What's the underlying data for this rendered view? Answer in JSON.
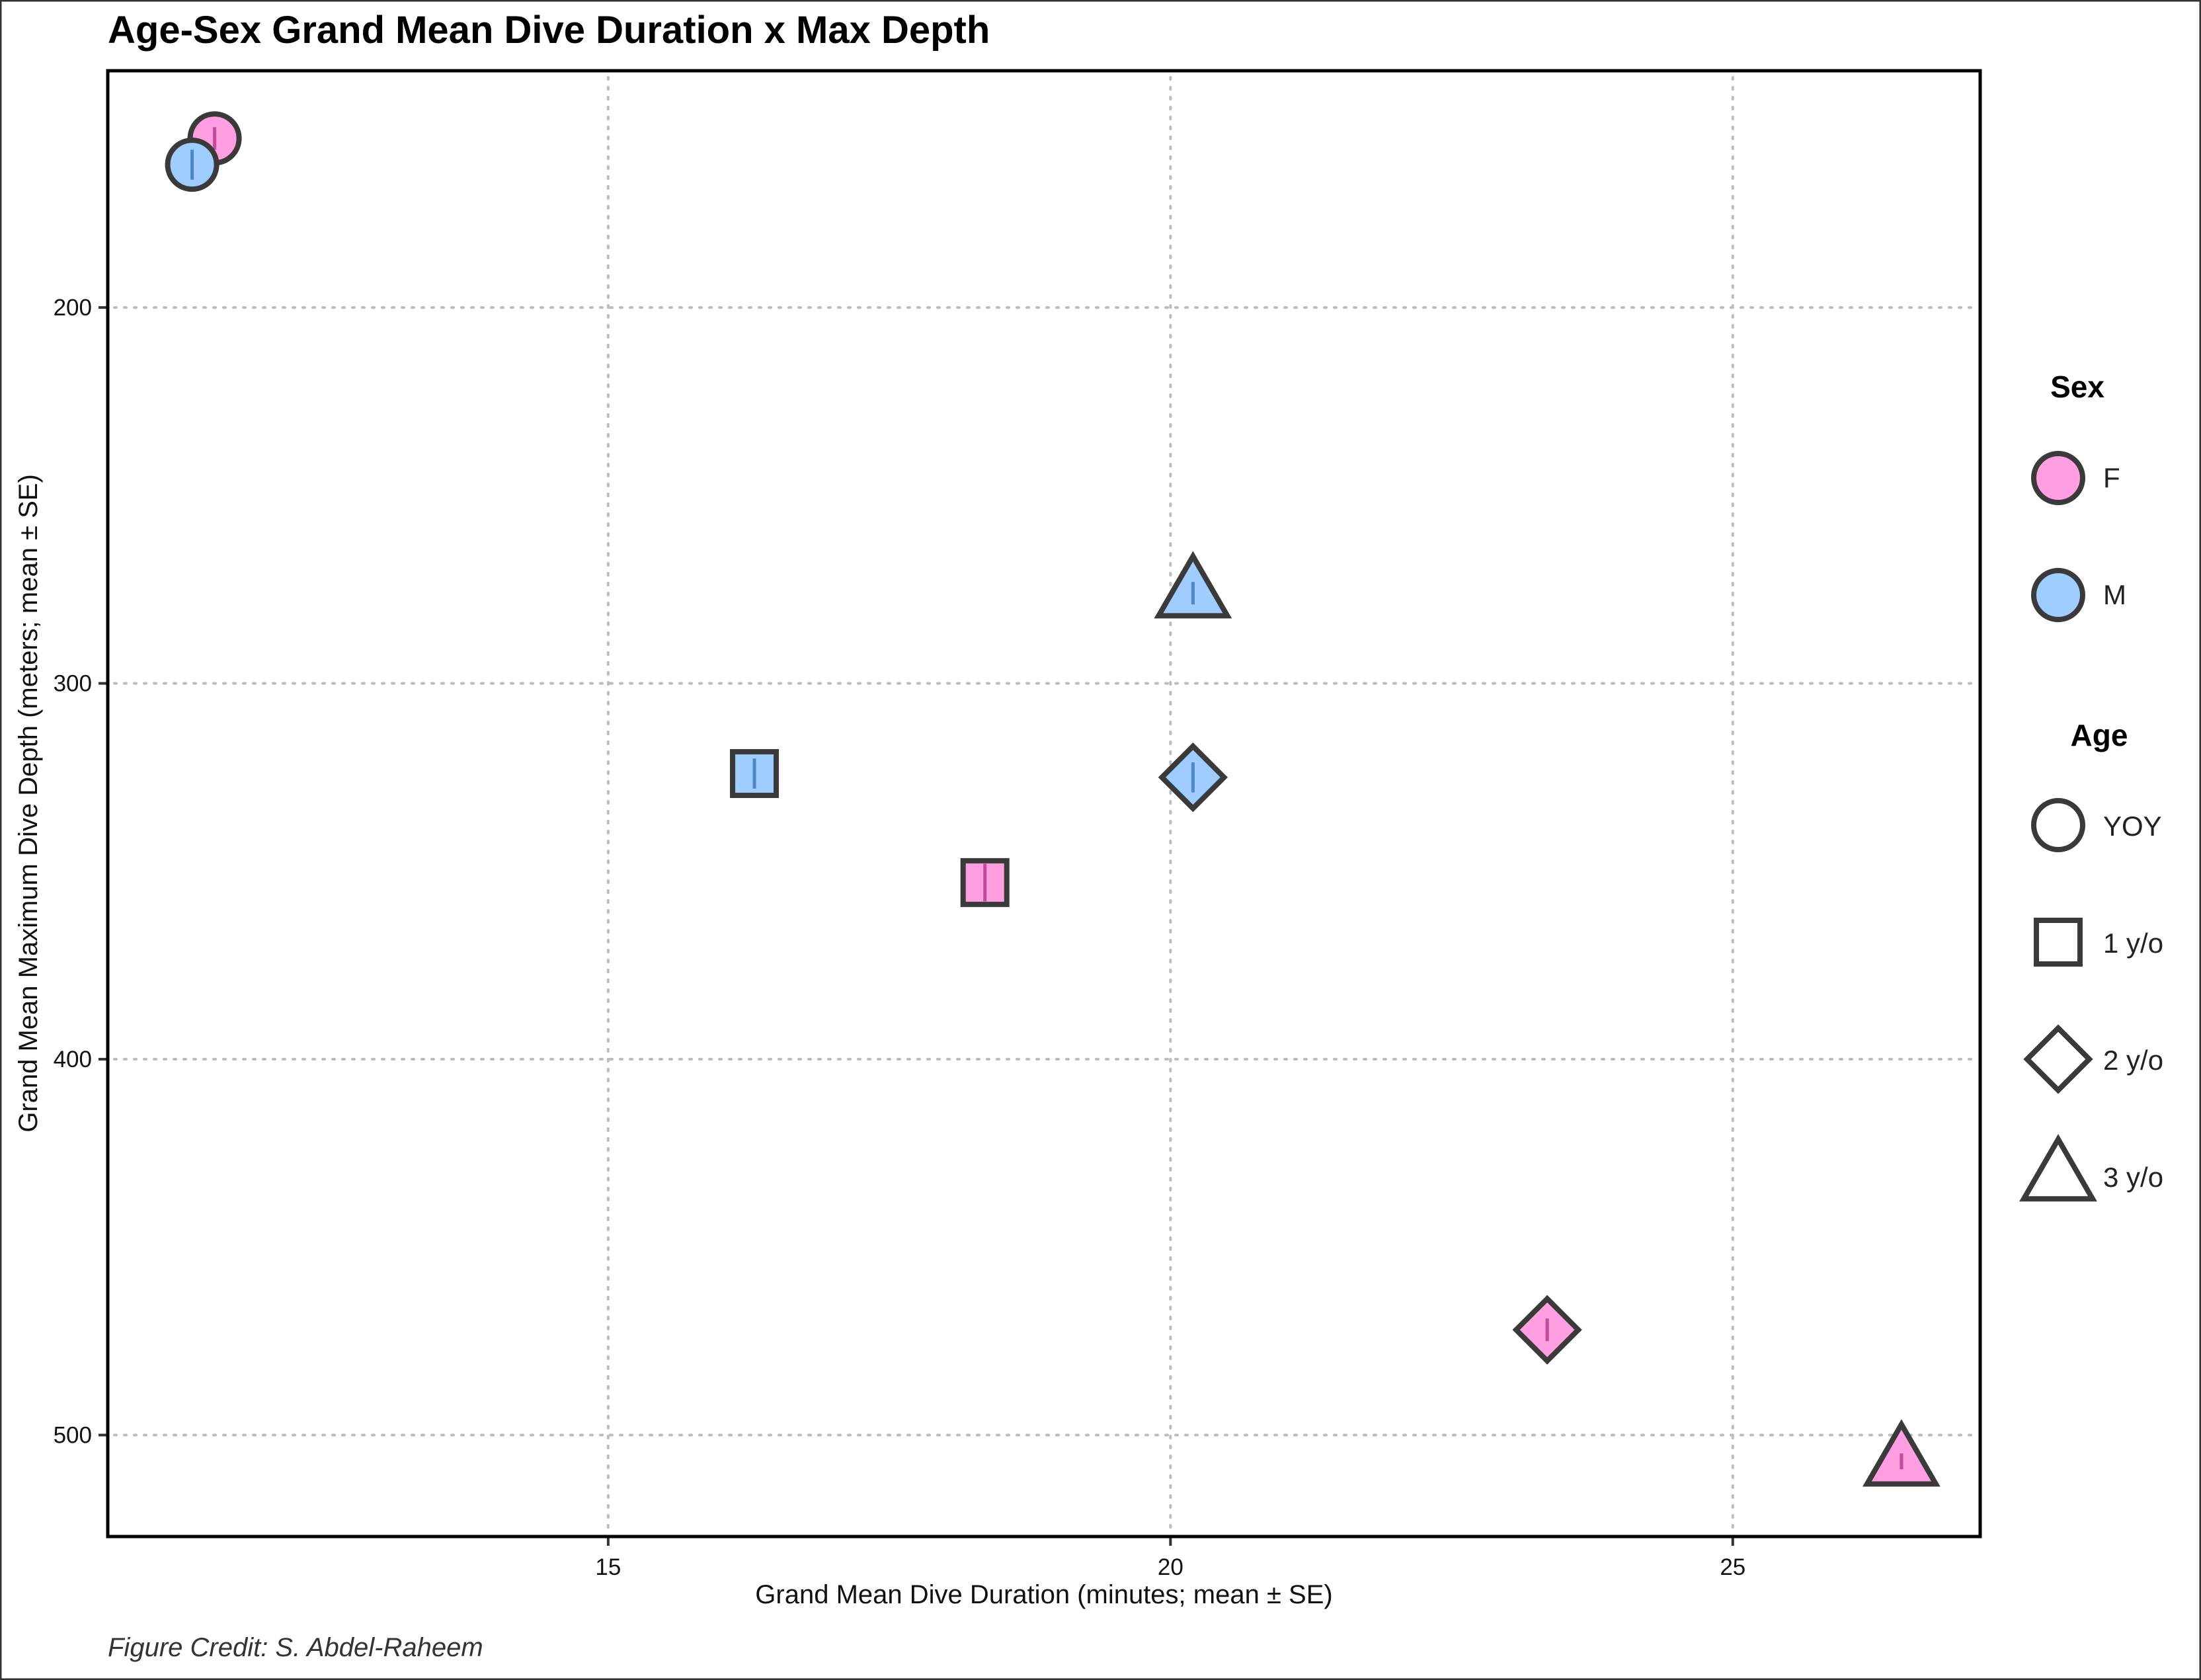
{
  "chart_data": {
    "type": "scatter",
    "title": "Age-Sex Grand Mean Dive Duration x Max Depth",
    "xlabel": "Grand Mean Dive Duration (minutes; mean ± SE)",
    "ylabel": "Grand Mean Maximum Dive Depth (meters; mean ± SE)",
    "caption": "Figure Credit: S. Abdel-Raheem",
    "xlim": [
      10.55,
      27.2
    ],
    "ylim": [
      137,
      527
    ],
    "y_reversed": true,
    "xticks": [
      15,
      20,
      25
    ],
    "yticks": [
      200,
      300,
      400,
      500
    ],
    "grid": true,
    "legend_position": "right",
    "colors": {
      "F": "#ff9ee1",
      "M": "#9fcdff",
      "outline": "#3a3a3a"
    },
    "legend": {
      "sex": {
        "title": "Sex",
        "entries": [
          {
            "label": "F",
            "sex": "F"
          },
          {
            "label": "M",
            "sex": "M"
          }
        ]
      },
      "age": {
        "title": "Age",
        "entries": [
          {
            "label": "YOY",
            "shape": "circle"
          },
          {
            "label": "1 y/o",
            "shape": "square"
          },
          {
            "label": "2 y/o",
            "shape": "diamond"
          },
          {
            "label": "3 y/o",
            "shape": "triangle"
          }
        ]
      }
    },
    "points": [
      {
        "sex": "F",
        "age": "YOY",
        "shape": "circle",
        "x": 11.5,
        "y": 155,
        "y_se": 3
      },
      {
        "sex": "M",
        "age": "YOY",
        "shape": "circle",
        "x": 11.3,
        "y": 162,
        "y_se": 4
      },
      {
        "sex": "M",
        "age": "3 y/o",
        "shape": "triangle",
        "x": 20.2,
        "y": 276,
        "y_se": 3
      },
      {
        "sex": "M",
        "age": "1 y/o",
        "shape": "square",
        "x": 16.3,
        "y": 324,
        "y_se": 4
      },
      {
        "sex": "M",
        "age": "2 y/o",
        "shape": "diamond",
        "x": 20.2,
        "y": 325,
        "y_se": 4
      },
      {
        "sex": "F",
        "age": "1 y/o",
        "shape": "square",
        "x": 18.35,
        "y": 353,
        "y_se": 5
      },
      {
        "sex": "F",
        "age": "2 y/o",
        "shape": "diamond",
        "x": 23.35,
        "y": 472,
        "y_se": 3
      },
      {
        "sex": "F",
        "age": "3 y/o",
        "shape": "triangle",
        "x": 26.5,
        "y": 507,
        "y_se": 2
      }
    ]
  }
}
